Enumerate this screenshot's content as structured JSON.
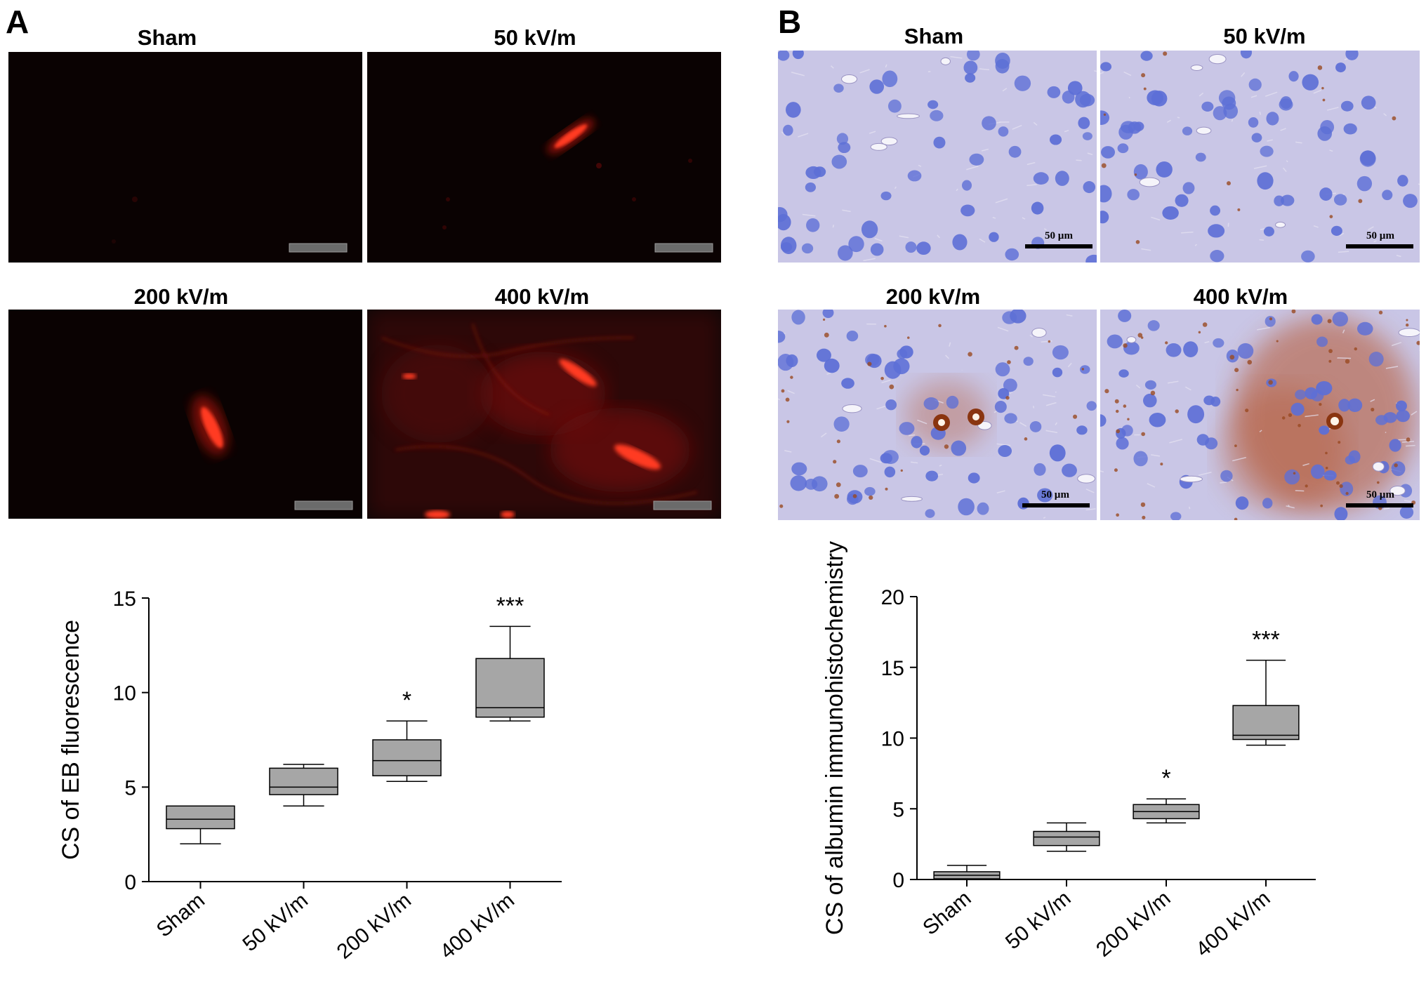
{
  "panels": {
    "A": {
      "letter": "A",
      "images": [
        {
          "title": "Sham",
          "kind": "fluorescence-sham"
        },
        {
          "title": "50 kV/m",
          "kind": "fluorescence-50"
        },
        {
          "title": "200 kV/m",
          "kind": "fluorescence-200"
        },
        {
          "title": "400 kV/m",
          "kind": "fluorescence-400"
        }
      ]
    },
    "B": {
      "letter": "B",
      "images": [
        {
          "title": "Sham",
          "kind": "ihc-sham",
          "scale_label": "50 µm"
        },
        {
          "title": "50 kV/m",
          "kind": "ihc-50",
          "scale_label": "50 µm"
        },
        {
          "title": "200 kV/m",
          "kind": "ihc-200",
          "scale_label": "50 µm"
        },
        {
          "title": "400 kV/m",
          "kind": "ihc-400",
          "scale_label": "50 µm"
        }
      ]
    }
  },
  "colors": {
    "box_fill": "#a6a6a6",
    "fluorescence_bg": "#0a0202",
    "fluorescence_signal": "#ff2a1a",
    "ihc_bg": "#c9c6e6",
    "ihc_nuclei": "#5d6fd6",
    "ihc_stain": "#b5532b"
  },
  "chart_data": [
    {
      "type": "box",
      "title": "",
      "xlabel": "",
      "ylabel": "CS of EB fluorescence",
      "categories": [
        "Sham",
        "50 kV/m",
        "200 kV/m",
        "400 kV/m"
      ],
      "ylim": [
        0,
        15
      ],
      "yticks": [
        0,
        5,
        10,
        15
      ],
      "boxes": [
        {
          "min": 2.0,
          "q1": 2.8,
          "median": 3.3,
          "q3": 4.0,
          "max": 4.0,
          "sig": ""
        },
        {
          "min": 4.0,
          "q1": 4.6,
          "median": 5.0,
          "q3": 6.0,
          "max": 6.2,
          "sig": ""
        },
        {
          "min": 5.3,
          "q1": 5.6,
          "median": 6.4,
          "q3": 7.5,
          "max": 8.5,
          "sig": "*"
        },
        {
          "min": 8.5,
          "q1": 8.7,
          "median": 9.2,
          "q3": 11.8,
          "max": 13.5,
          "sig": "***"
        }
      ]
    },
    {
      "type": "box",
      "title": "",
      "xlabel": "",
      "ylabel": "CS of albumin immunohistochemistry",
      "categories": [
        "Sham",
        "50 kV/m",
        "200 kV/m",
        "400 kV/m"
      ],
      "ylim": [
        0,
        20
      ],
      "yticks": [
        0,
        5,
        10,
        15,
        20
      ],
      "boxes": [
        {
          "min": 0.0,
          "q1": 0.05,
          "median": 0.3,
          "q3": 0.55,
          "max": 1.0,
          "sig": ""
        },
        {
          "min": 2.0,
          "q1": 2.4,
          "median": 3.0,
          "q3": 3.4,
          "max": 4.0,
          "sig": ""
        },
        {
          "min": 4.0,
          "q1": 4.3,
          "median": 4.8,
          "q3": 5.3,
          "max": 5.7,
          "sig": "*"
        },
        {
          "min": 9.5,
          "q1": 9.9,
          "median": 10.2,
          "q3": 12.3,
          "max": 15.5,
          "sig": "***"
        }
      ]
    }
  ]
}
